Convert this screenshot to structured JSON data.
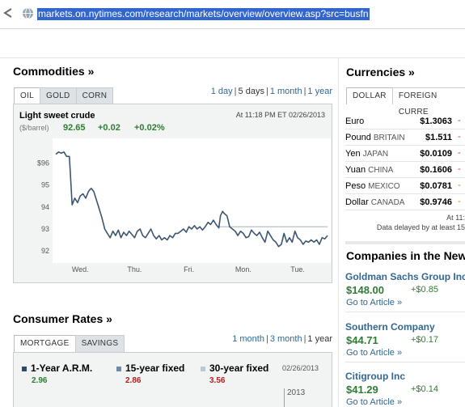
{
  "browser": {
    "url": "markets.on.nytimes.com/research/markets/overview/overview.asp?src=busfn"
  },
  "commodities": {
    "title": "Commodities »",
    "tabs": [
      "OIL",
      "GOLD",
      "CORN"
    ],
    "ranges": [
      "1 day",
      "5 days",
      "1 month",
      "1 year"
    ],
    "active_range": "5 days",
    "name": "Light sweet crude",
    "unit": "($/barrel)",
    "timestamp": "At 11:18 PM ET 02/26/2013",
    "price": "92.65",
    "change": "+0.02",
    "change_pct": "+0.02%"
  },
  "chart_data": {
    "type": "line",
    "title": "Light sweet crude",
    "xlabel": "",
    "ylabel": "($/barrel)",
    "x_tick_labels": [
      "Wed.",
      "Thu.",
      "Fri.",
      "Mon.",
      "Tue."
    ],
    "y_tick_labels": [
      "$96",
      "95",
      "94",
      "93",
      "92"
    ],
    "y_ticks": [
      96,
      95,
      94,
      93,
      92
    ],
    "ylim": [
      91.6,
      96.9
    ],
    "xlim": [
      0,
      5
    ],
    "grid": false,
    "reference_line": {
      "y": 93.1,
      "x_from": 3.0,
      "x_to": 5.0
    },
    "series": [
      {
        "x": [
          0.0,
          0.05,
          0.1,
          0.15,
          0.2,
          0.25,
          0.3,
          0.35,
          0.4,
          0.45,
          0.5,
          0.55,
          0.6,
          0.65,
          0.7,
          0.75,
          0.8,
          0.85,
          0.9,
          0.95,
          1.0,
          1.05,
          1.1,
          1.15,
          1.2,
          1.25,
          1.3,
          1.35,
          1.4,
          1.45,
          1.5,
          1.55,
          1.6,
          1.65,
          1.7,
          1.75,
          1.8,
          1.85,
          1.9,
          1.95,
          2.0,
          2.05,
          2.1,
          2.15,
          2.2,
          2.25,
          2.3,
          2.35,
          2.4,
          2.45,
          2.5,
          2.55,
          2.6,
          2.65,
          2.7,
          2.75,
          2.8,
          2.85,
          2.9,
          2.95,
          3.0,
          3.03,
          3.07,
          3.1,
          3.15,
          3.2,
          3.25,
          3.3,
          3.35,
          3.4,
          3.45,
          3.5,
          3.55,
          3.6,
          3.65,
          3.7,
          3.75,
          3.8,
          3.85,
          3.9,
          3.95,
          4.0,
          4.05,
          4.1,
          4.15,
          4.2,
          4.25,
          4.3,
          4.35,
          4.4,
          4.45,
          4.5,
          4.55,
          4.6,
          4.65,
          4.7,
          4.75,
          4.8,
          4.85,
          4.9,
          4.95,
          5.0
        ],
        "values": [
          96.4,
          96.5,
          96.45,
          96.5,
          96.3,
          96.3,
          94.1,
          94.4,
          94.2,
          94.5,
          94.6,
          94.4,
          94.7,
          94.85,
          94.7,
          94.3,
          93.9,
          93.5,
          93.0,
          92.8,
          92.6,
          92.9,
          92.7,
          92.95,
          92.6,
          92.85,
          92.7,
          92.9,
          92.75,
          92.6,
          92.9,
          93.0,
          92.7,
          92.6,
          92.8,
          93.0,
          92.7,
          92.55,
          92.7,
          92.5,
          92.6,
          92.5,
          92.7,
          92.6,
          92.8,
          92.8,
          92.9,
          93.0,
          92.85,
          93.1,
          93.0,
          93.15,
          93.0,
          93.1,
          92.95,
          93.1,
          93.3,
          93.2,
          93.4,
          93.2,
          93.05,
          93.6,
          93.8,
          93.7,
          93.6,
          93.1,
          93.0,
          92.9,
          92.7,
          92.9,
          92.8,
          92.6,
          92.65,
          92.95,
          92.8,
          92.7,
          92.85,
          92.6,
          92.4,
          92.9,
          92.7,
          92.5,
          92.4,
          92.2,
          92.3,
          92.8,
          92.4,
          92.6,
          92.4,
          92.9,
          92.6,
          92.5,
          92.3,
          92.45,
          92.4,
          92.5,
          92.4,
          92.5,
          92.3,
          92.6,
          92.55,
          92.7
        ]
      }
    ]
  },
  "consumer_rates": {
    "title": "Consumer Rates »",
    "tabs": [
      "MORTGAGE",
      "SAVINGS"
    ],
    "ranges": [
      "1 month",
      "3 month",
      "1 year"
    ],
    "date": "02/26/2013",
    "year_label": "2013",
    "items": [
      {
        "label": "1-Year A.R.M.",
        "value": "2.96",
        "color": "#2e7d32",
        "swatch": "#2f4a66"
      },
      {
        "label": "15-year fixed",
        "value": "2.86",
        "color": "#b71c1c",
        "swatch": "#6e8aa4"
      },
      {
        "label": "30-year fixed",
        "value": "3.56",
        "color": "#b71c1c",
        "swatch": "#b9c9d6"
      }
    ]
  },
  "currencies": {
    "title": "Currencies »",
    "tabs": [
      "DOLLAR",
      "FOREIGN CURRE"
    ],
    "rows": [
      {
        "name": "Euro",
        "country": "",
        "value": "$1.3063",
        "chg": "-"
      },
      {
        "name": "Pound",
        "country": "BRITAIN",
        "value": "$1.511",
        "chg": "-"
      },
      {
        "name": "Yen",
        "country": "JAPAN",
        "value": "$0.0109",
        "chg": "-"
      },
      {
        "name": "Yuan",
        "country": "CHINA",
        "value": "$0.1606",
        "chg": "-"
      },
      {
        "name": "Peso",
        "country": "MEXICO",
        "value": "$0.0781",
        "chg": "-"
      },
      {
        "name": "Dollar",
        "country": "CANADA",
        "value": "$0.9746",
        "chg": "-"
      }
    ],
    "timestamp": "At 11:",
    "note": "Data delayed by at least 15"
  },
  "companies": {
    "title": "Companies in the New",
    "items": [
      {
        "name": "Goldman Sachs Group Inc",
        "price": "$148.00",
        "change": "+$0.85",
        "link": "Go to Article »"
      },
      {
        "name": "Southern Company",
        "price": "$44.71",
        "change": "+$0.17",
        "link": "Go to Article »"
      },
      {
        "name": "Citigroup Inc",
        "price": "$41.29",
        "change": "+$0.14",
        "link": "Go to Article »"
      }
    ]
  }
}
